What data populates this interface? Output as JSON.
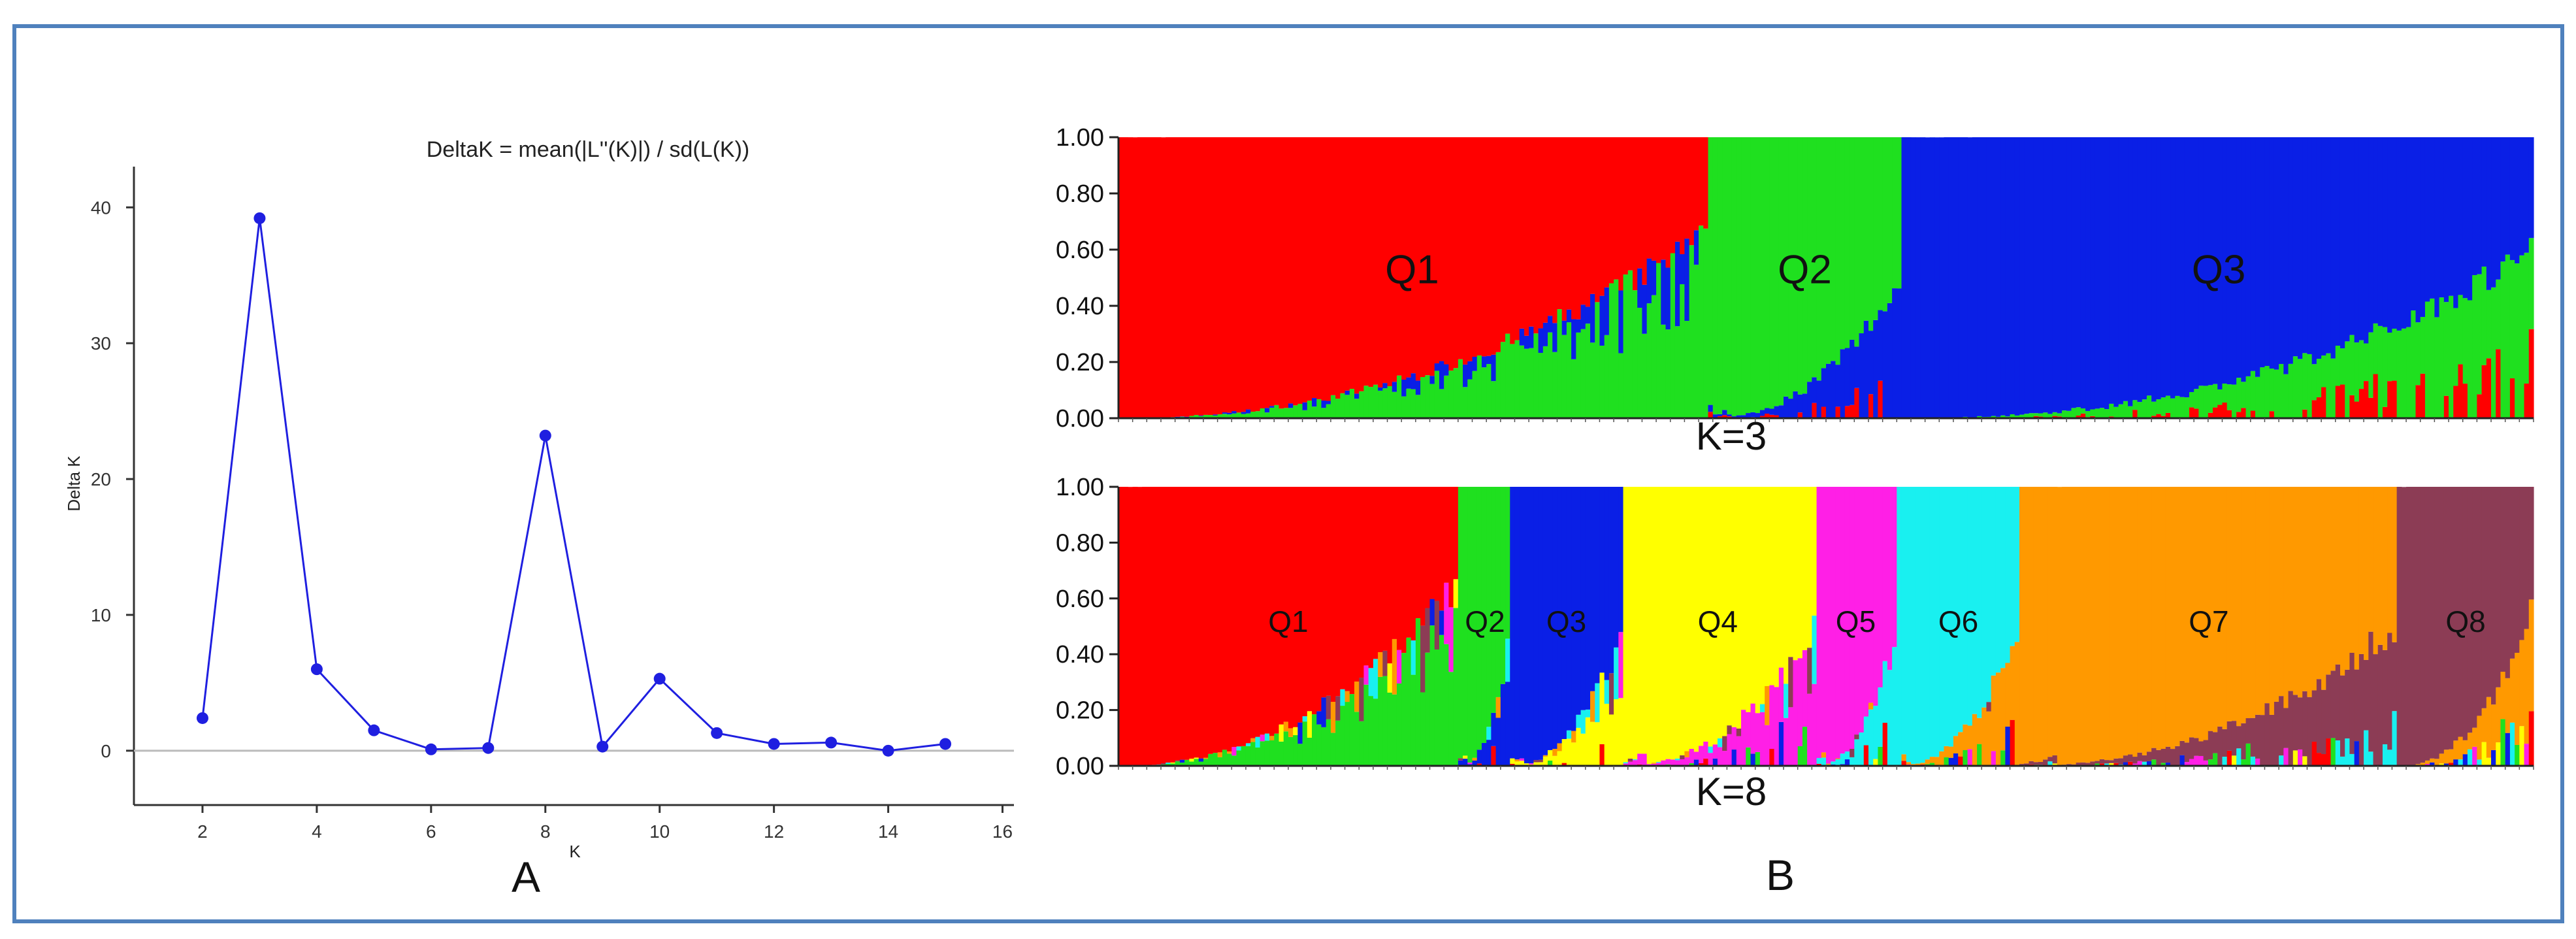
{
  "colors": {
    "frame": "#4f81bd",
    "line": "#1f1fe0",
    "axis": "#333333",
    "zero_line": "#bbbbbb",
    "red": "#ff0000",
    "green": "#1fe01f",
    "blue": "#0a1fe6",
    "yellow": "#ffff00",
    "magenta": "#ff1fe6",
    "cyan": "#19f0f0",
    "orange": "#ff9900",
    "maroon": "#8c3c55"
  },
  "panel_a": {
    "panel_label": "A"
  },
  "panel_b": {
    "panel_label": "B",
    "yticks": [
      "1.00",
      "0.80",
      "0.60",
      "0.40",
      "0.20",
      "0.00"
    ]
  },
  "chart_data": [
    {
      "type": "line",
      "title": "DeltaK = mean(|L''(K)|) / sd(L(K))",
      "xlabel": "K",
      "ylabel": "Delta K",
      "x": [
        2,
        3,
        4,
        5,
        6,
        7,
        8,
        9,
        10,
        11,
        12,
        13,
        14,
        15
      ],
      "y": [
        2.4,
        39.2,
        6.0,
        1.5,
        0.1,
        0.2,
        23.2,
        0.3,
        5.3,
        1.3,
        0.5,
        0.6,
        0.0,
        0.5
      ],
      "xticks": [
        2,
        4,
        6,
        8,
        10,
        12,
        14,
        16
      ],
      "yticks": [
        0,
        10,
        20,
        30,
        40
      ],
      "xlim": [
        0.8,
        16.2
      ],
      "ylim": [
        -4,
        43
      ],
      "grid": false,
      "marker": "circle"
    },
    {
      "type": "area",
      "title": "K=3",
      "ylim": [
        0,
        1
      ],
      "clusters": [
        {
          "label": "Q1",
          "color": "red",
          "share": 0.415
        },
        {
          "label": "Q2",
          "color": "green",
          "share": 0.14
        },
        {
          "label": "Q3",
          "color": "blue",
          "share": 0.445
        }
      ]
    },
    {
      "type": "area",
      "title": "K=8",
      "ylim": [
        0,
        1
      ],
      "clusters": [
        {
          "label": "Q1",
          "color": "red",
          "share": 0.24
        },
        {
          "label": "Q2",
          "color": "green",
          "share": 0.038
        },
        {
          "label": "Q3",
          "color": "blue",
          "share": 0.077
        },
        {
          "label": "Q4",
          "color": "yellow",
          "share": 0.137
        },
        {
          "label": "Q5",
          "color": "magenta",
          "share": 0.058
        },
        {
          "label": "Q6",
          "color": "cyan",
          "share": 0.087
        },
        {
          "label": "Q7",
          "color": "orange",
          "share": 0.267
        },
        {
          "label": "Q8",
          "color": "maroon",
          "share": 0.096
        }
      ]
    }
  ]
}
